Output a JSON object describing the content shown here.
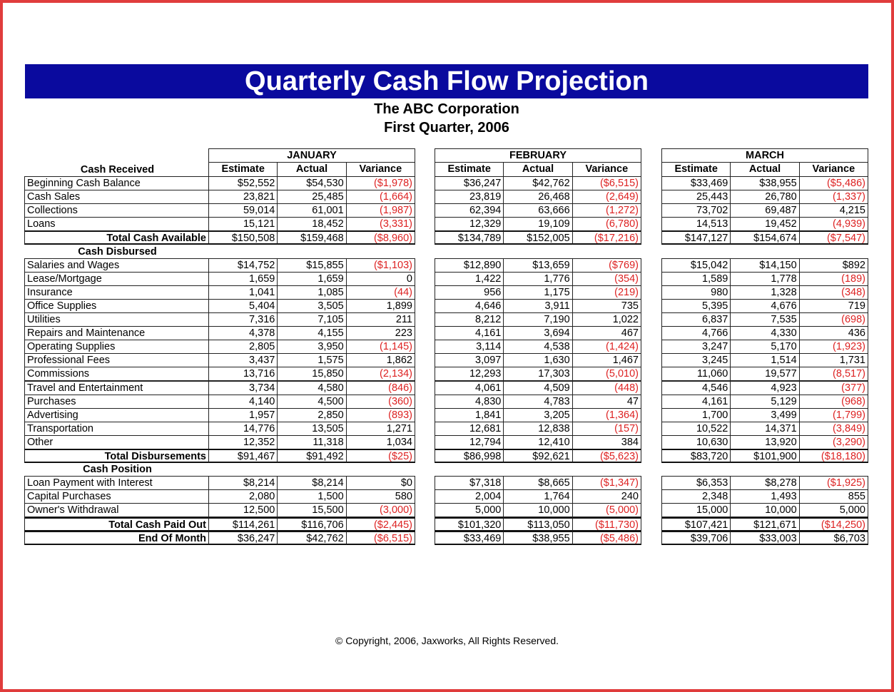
{
  "header": {
    "title": "Quarterly Cash Flow Projection",
    "company": "The ABC Corporation",
    "period": "First Quarter, 2006"
  },
  "table": {
    "months": [
      "JANUARY",
      "FEBRUARY",
      "MARCH"
    ],
    "columns": [
      "Estimate",
      "Actual",
      "Variance"
    ],
    "sections": [
      {
        "heading": "Cash Received",
        "rows": [
          {
            "label": "Beginning Cash Balance",
            "values": [
              "$52,552",
              "$54,530",
              "($1,978)",
              "$36,247",
              "$42,762",
              "($6,515)",
              "$33,469",
              "$38,955",
              "($5,486)"
            ]
          },
          {
            "label": "Cash Sales",
            "values": [
              "23,821",
              "25,485",
              "(1,664)",
              "23,819",
              "26,468",
              "(2,649)",
              "25,443",
              "26,780",
              "(1,337)"
            ]
          },
          {
            "label": "Collections",
            "values": [
              "59,014",
              "61,001",
              "(1,987)",
              "62,394",
              "63,666",
              "(1,272)",
              "73,702",
              "69,487",
              "4,215"
            ]
          },
          {
            "label": "Loans",
            "values": [
              "15,121",
              "18,452",
              "(3,331)",
              "12,329",
              "19,109",
              "(6,780)",
              "14,513",
              "19,452",
              "(4,939)"
            ]
          }
        ],
        "totals": [
          {
            "label": "Total Cash Available",
            "values": [
              "$150,508",
              "$159,468",
              "($8,960)",
              "$134,789",
              "$152,005",
              "($17,216)",
              "$147,127",
              "$154,674",
              "($7,547)"
            ]
          }
        ]
      },
      {
        "heading": "Cash Disbursed",
        "rows": [
          {
            "label": "Salaries and Wages",
            "values": [
              "$14,752",
              "$15,855",
              "($1,103)",
              "$12,890",
              "$13,659",
              "($769)",
              "$15,042",
              "$14,150",
              "$892"
            ]
          },
          {
            "label": "Lease/Mortgage",
            "values": [
              "1,659",
              "1,659",
              "0",
              "1,422",
              "1,776",
              "(354)",
              "1,589",
              "1,778",
              "(189)"
            ]
          },
          {
            "label": "Insurance",
            "values": [
              "1,041",
              "1,085",
              "(44)",
              "956",
              "1,175",
              "(219)",
              "980",
              "1,328",
              "(348)"
            ]
          },
          {
            "label": "Office Supplies",
            "values": [
              "5,404",
              "3,505",
              "1,899",
              "4,646",
              "3,911",
              "735",
              "5,395",
              "4,676",
              "719"
            ]
          },
          {
            "label": "Utilities",
            "values": [
              "7,316",
              "7,105",
              "211",
              "8,212",
              "7,190",
              "1,022",
              "6,837",
              "7,535",
              "(698)"
            ]
          },
          {
            "label": "Repairs and Maintenance",
            "values": [
              "4,378",
              "4,155",
              "223",
              "4,161",
              "3,694",
              "467",
              "4,766",
              "4,330",
              "436"
            ]
          },
          {
            "label": "Operating Supplies",
            "values": [
              "2,805",
              "3,950",
              "(1,145)",
              "3,114",
              "4,538",
              "(1,424)",
              "3,247",
              "5,170",
              "(1,923)"
            ]
          },
          {
            "label": "Professional Fees",
            "values": [
              "3,437",
              "1,575",
              "1,862",
              "3,097",
              "1,630",
              "1,467",
              "3,245",
              "1,514",
              "1,731"
            ]
          },
          {
            "label": "Commissions",
            "values": [
              "13,716",
              "15,850",
              "(2,134)",
              "12,293",
              "17,303",
              "(5,010)",
              "11,060",
              "19,577",
              "(8,517)"
            ]
          },
          {
            "label": "Travel and Entertainment",
            "values": [
              "3,734",
              "4,580",
              "(846)",
              "4,061",
              "4,509",
              "(448)",
              "4,546",
              "4,923",
              "(377)"
            ]
          },
          {
            "label": "Purchases",
            "values": [
              "4,140",
              "4,500",
              "(360)",
              "4,830",
              "4,783",
              "47",
              "4,161",
              "5,129",
              "(968)"
            ]
          },
          {
            "label": "Advertising",
            "values": [
              "1,957",
              "2,850",
              "(893)",
              "1,841",
              "3,205",
              "(1,364)",
              "1,700",
              "3,499",
              "(1,799)"
            ]
          },
          {
            "label": "Transportation",
            "values": [
              "14,776",
              "13,505",
              "1,271",
              "12,681",
              "12,838",
              "(157)",
              "10,522",
              "14,371",
              "(3,849)"
            ]
          },
          {
            "label": "Other",
            "values": [
              "12,352",
              "11,318",
              "1,034",
              "12,794",
              "12,410",
              "384",
              "10,630",
              "13,920",
              "(3,290)"
            ]
          }
        ],
        "totals": [
          {
            "label": "Total Disbursements",
            "values": [
              "$91,467",
              "$91,492",
              "($25)",
              "$86,998",
              "$92,621",
              "($5,623)",
              "$83,720",
              "$101,900",
              "($18,180)"
            ]
          }
        ]
      },
      {
        "heading": "Cash Position",
        "rows": [
          {
            "label": "Loan Payment with Interest",
            "values": [
              "$8,214",
              "$8,214",
              "$0",
              "$7,318",
              "$8,665",
              "($1,347)",
              "$6,353",
              "$8,278",
              "($1,925)"
            ]
          },
          {
            "label": "Capital Purchases",
            "values": [
              "2,080",
              "1,500",
              "580",
              "2,004",
              "1,764",
              "240",
              "2,348",
              "1,493",
              "855"
            ]
          },
          {
            "label": "Owner's Withdrawal",
            "values": [
              "12,500",
              "15,500",
              "(3,000)",
              "5,000",
              "10,000",
              "(5,000)",
              "15,000",
              "10,000",
              "5,000"
            ]
          }
        ],
        "totals": [
          {
            "label": "Total Cash Paid Out",
            "values": [
              "$114,261",
              "$116,706",
              "($2,445)",
              "$101,320",
              "$113,050",
              "($11,730)",
              "$107,421",
              "$121,671",
              "($14,250)"
            ]
          },
          {
            "label": "End Of Month",
            "values": [
              "$36,247",
              "$42,762",
              "($6,515)",
              "$33,469",
              "$38,955",
              "($5,486)",
              "$39,706",
              "$33,003",
              "$6,703"
            ]
          }
        ]
      }
    ]
  },
  "footer": {
    "copyright": "© Copyright, 2006, Jaxworks, All Rights Reserved."
  }
}
